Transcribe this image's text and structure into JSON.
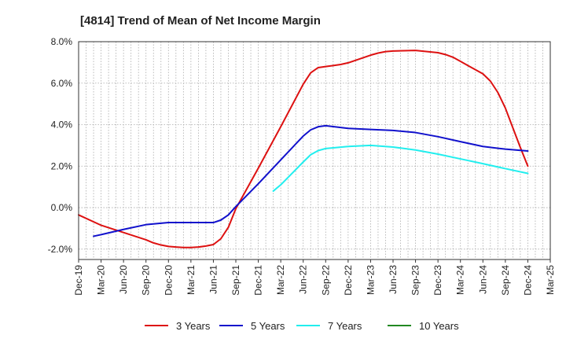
{
  "chart_data": {
    "type": "line",
    "title": "[4814]  Trend of Mean of Net Income Margin",
    "xlabel": "",
    "ylabel": "",
    "ylim": [
      -2.5,
      8.0
    ],
    "yticks": [
      -2.0,
      0.0,
      2.0,
      4.0,
      6.0,
      8.0
    ],
    "ytick_labels": [
      "-2.0%",
      "0.0%",
      "2.0%",
      "4.0%",
      "6.0%",
      "8.0%"
    ],
    "xtick_labels": [
      "Dec-19",
      "Mar-20",
      "Jun-20",
      "Sep-20",
      "Dec-20",
      "Mar-21",
      "Jun-21",
      "Sep-21",
      "Dec-21",
      "Mar-22",
      "Jun-22",
      "Sep-22",
      "Dec-22",
      "Mar-23",
      "Jun-23",
      "Sep-23",
      "Dec-23",
      "Mar-24",
      "Jun-24",
      "Sep-24",
      "Dec-24",
      "Mar-25"
    ],
    "grid": true,
    "legend_position": "bottom",
    "series": [
      {
        "name": "3 Years",
        "color": "#dd1111",
        "x": [
          "Dec-19",
          "Mar-20",
          "Jun-20",
          "Sep-20",
          "Oct-20",
          "Nov-20",
          "Dec-20",
          "Jan-21",
          "Feb-21",
          "Mar-21",
          "Apr-21",
          "May-21",
          "Jun-21",
          "Jul-21",
          "Aug-21",
          "Sep-21",
          "Dec-21",
          "Mar-22",
          "Jun-22",
          "Jul-22",
          "Aug-22",
          "Sep-22",
          "Oct-22",
          "Nov-22",
          "Dec-22",
          "Mar-23",
          "Apr-23",
          "May-23",
          "Jun-23",
          "Sep-23",
          "Dec-23",
          "Jan-24",
          "Feb-24",
          "Mar-24",
          "Apr-24",
          "May-24",
          "Jun-24",
          "Jul-24",
          "Aug-24",
          "Sep-24",
          "Oct-24",
          "Nov-24",
          "Dec-24"
        ],
        "values": [
          -0.35,
          -0.85,
          -1.2,
          -1.55,
          -1.7,
          -1.8,
          -1.87,
          -1.9,
          -1.92,
          -1.92,
          -1.9,
          -1.85,
          -1.78,
          -1.5,
          -0.95,
          -0.05,
          1.9,
          3.9,
          5.95,
          6.5,
          6.75,
          6.8,
          6.85,
          6.9,
          6.98,
          7.35,
          7.45,
          7.52,
          7.55,
          7.58,
          7.47,
          7.38,
          7.25,
          7.05,
          6.85,
          6.65,
          6.45,
          6.1,
          5.55,
          4.8,
          3.85,
          2.9,
          2.0
        ]
      },
      {
        "name": "5 Years",
        "color": "#1111cc",
        "x": [
          "Feb-20",
          "Mar-20",
          "Jun-20",
          "Sep-20",
          "Dec-20",
          "Mar-21",
          "Jun-21",
          "Jul-21",
          "Aug-21",
          "Sep-21",
          "Dec-21",
          "Mar-22",
          "Jun-22",
          "Jul-22",
          "Aug-22",
          "Sep-22",
          "Dec-22",
          "Mar-23",
          "Jun-23",
          "Sep-23",
          "Dec-23",
          "Mar-24",
          "Jun-24",
          "Sep-24",
          "Dec-24"
        ],
        "values": [
          -1.38,
          -1.3,
          -1.05,
          -0.82,
          -0.72,
          -0.72,
          -0.72,
          -0.6,
          -0.35,
          0.05,
          1.15,
          2.3,
          3.45,
          3.75,
          3.9,
          3.95,
          3.82,
          3.77,
          3.72,
          3.62,
          3.42,
          3.18,
          2.95,
          2.82,
          2.73
        ]
      },
      {
        "name": "7 Years",
        "color": "#22eeee",
        "x": [
          "Feb-22",
          "Mar-22",
          "Jun-22",
          "Jul-22",
          "Aug-22",
          "Sep-22",
          "Dec-22",
          "Mar-23",
          "Jun-23",
          "Sep-23",
          "Dec-23",
          "Mar-24",
          "Jun-24",
          "Sep-24",
          "Dec-24"
        ],
        "values": [
          0.8,
          1.1,
          2.2,
          2.55,
          2.75,
          2.85,
          2.95,
          3.0,
          2.92,
          2.78,
          2.58,
          2.35,
          2.12,
          1.88,
          1.65
        ]
      },
      {
        "name": "10 Years",
        "color": "#228822",
        "x": [],
        "values": []
      }
    ]
  }
}
